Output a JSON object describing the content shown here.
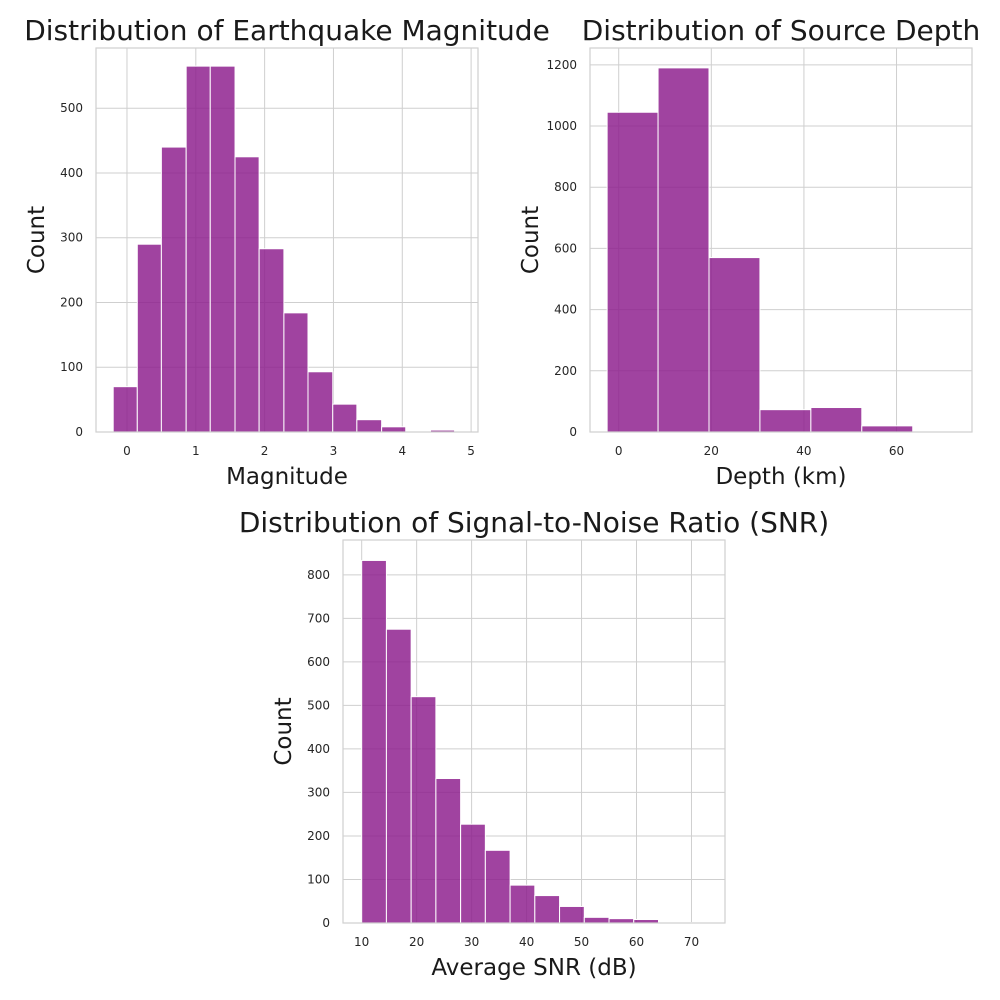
{
  "colors": {
    "bar": "#8B1A8B",
    "grid": "#cfcfcf"
  },
  "chart_data": [
    {
      "type": "bar",
      "title": "Distribution of Earthquake Magnitude",
      "xlabel": "Magnitude",
      "ylabel": "Count",
      "xlim": [
        -0.45,
        5.1
      ],
      "ylim": [
        0,
        593
      ],
      "xticks": [
        0,
        1,
        2,
        3,
        4,
        5
      ],
      "yticks": [
        0,
        100,
        200,
        300,
        400,
        500
      ],
      "bins": [
        {
          "x0": -0.2,
          "x1": 0.15,
          "value": 70
        },
        {
          "x0": 0.15,
          "x1": 0.5,
          "value": 290
        },
        {
          "x0": 0.5,
          "x1": 0.86,
          "value": 440
        },
        {
          "x0": 0.86,
          "x1": 1.21,
          "value": 565
        },
        {
          "x0": 1.21,
          "x1": 1.57,
          "value": 565
        },
        {
          "x0": 1.57,
          "x1": 1.92,
          "value": 425
        },
        {
          "x0": 1.92,
          "x1": 2.28,
          "value": 283
        },
        {
          "x0": 2.28,
          "x1": 2.63,
          "value": 184
        },
        {
          "x0": 2.63,
          "x1": 2.99,
          "value": 93
        },
        {
          "x0": 2.99,
          "x1": 3.34,
          "value": 43
        },
        {
          "x0": 3.34,
          "x1": 3.7,
          "value": 19
        },
        {
          "x0": 3.7,
          "x1": 4.05,
          "value": 8
        },
        {
          "x0": 4.05,
          "x1": 4.41,
          "value": 0
        },
        {
          "x0": 4.41,
          "x1": 4.76,
          "value": 3
        }
      ]
    },
    {
      "type": "bar",
      "title": "Distribution of Source Depth",
      "xlabel": "Depth (km)",
      "ylabel": "Count",
      "xlim": [
        -6.2,
        76.3
      ],
      "ylim": [
        0,
        1255
      ],
      "xticks": [
        0,
        20,
        40,
        60
      ],
      "yticks": [
        0,
        200,
        400,
        600,
        800,
        1000,
        1200
      ],
      "bins": [
        {
          "x0": -2.5,
          "x1": 8.5,
          "value": 1045
        },
        {
          "x0": 8.5,
          "x1": 19.5,
          "value": 1190
        },
        {
          "x0": 19.5,
          "x1": 30.5,
          "value": 570
        },
        {
          "x0": 30.5,
          "x1": 41.5,
          "value": 73
        },
        {
          "x0": 41.5,
          "x1": 52.5,
          "value": 80
        },
        {
          "x0": 52.5,
          "x1": 63.5,
          "value": 20
        }
      ]
    },
    {
      "type": "bar",
      "title": "Distribution of Signal-to-Noise Ratio (SNR)",
      "xlabel": "Average SNR (dB)",
      "ylabel": "Count",
      "xlim": [
        6.6,
        76.1
      ],
      "ylim": [
        0,
        880
      ],
      "xticks": [
        10,
        20,
        30,
        40,
        50,
        60,
        70
      ],
      "yticks": [
        0,
        100,
        200,
        300,
        400,
        500,
        600,
        700,
        800
      ],
      "bins": [
        {
          "x0": 10,
          "x1": 14.5,
          "value": 833
        },
        {
          "x0": 14.5,
          "x1": 19,
          "value": 675
        },
        {
          "x0": 19,
          "x1": 23.5,
          "value": 520
        },
        {
          "x0": 23.5,
          "x1": 28,
          "value": 332
        },
        {
          "x0": 28,
          "x1": 32.5,
          "value": 227
        },
        {
          "x0": 32.5,
          "x1": 37,
          "value": 167
        },
        {
          "x0": 37,
          "x1": 41.5,
          "value": 87
        },
        {
          "x0": 41.5,
          "x1": 46,
          "value": 63
        },
        {
          "x0": 46,
          "x1": 50.5,
          "value": 38
        },
        {
          "x0": 50.5,
          "x1": 55,
          "value": 13
        },
        {
          "x0": 55,
          "x1": 59.5,
          "value": 10
        },
        {
          "x0": 59.5,
          "x1": 64,
          "value": 8
        },
        {
          "x0": 64,
          "x1": 68.5,
          "value": 2
        },
        {
          "x0": 68.5,
          "x1": 73,
          "value": 1
        }
      ]
    }
  ]
}
